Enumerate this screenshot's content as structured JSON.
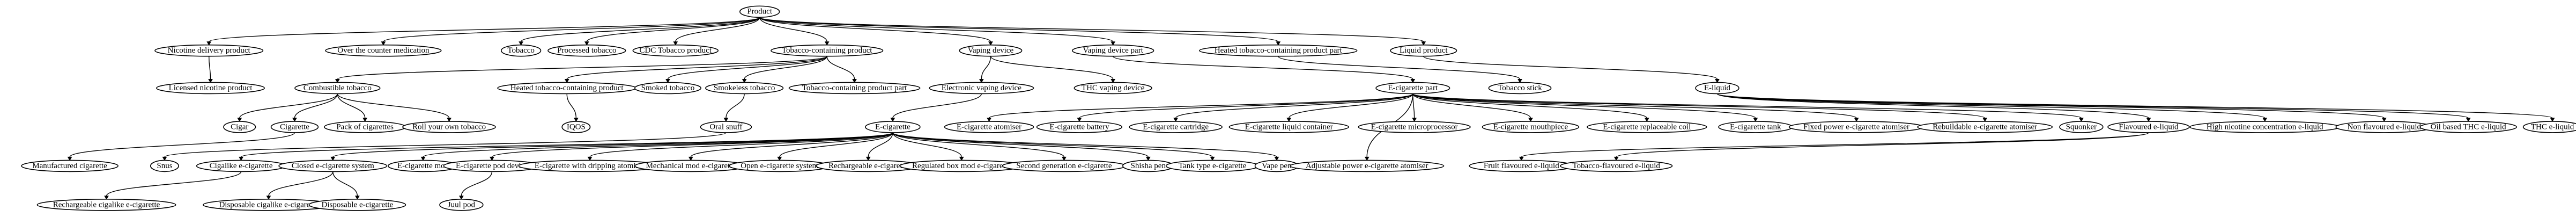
{
  "nodes": {
    "product": "Product",
    "nicotine_delivery_product": "Nicotine delivery product",
    "otc_medication": "Over the counter medication",
    "tobacco": "Tobacco",
    "processed_tobacco": "Processed tobacco",
    "cdc_tobacco_product": "CDC Tobacco product",
    "tobacco_containing_product": "Tobacco-containing product",
    "vaping_device": "Vaping device",
    "vaping_device_part": "Vaping device part",
    "heated_tobacco_containing_product_part": "Heated tobacco-containing product part",
    "liquid_product": "Liquid product",
    "licensed_nicotine_product": "Licensed nicotine product",
    "combustible_tobacco": "Combustible tobacco",
    "heated_tobacco_containing_product": "Heated tobacco-containing product",
    "smoked_tobacco": "Smoked tobacco",
    "smokeless_tobacco": "Smokeless tobacco",
    "tobacco_containing_product_part": "Tobacco-containing product part",
    "electronic_vaping_device": "Electronic vaping device",
    "thc_vaping_device": "THC vaping device",
    "e_cigarette_part": "E-cigarette part",
    "tobacco_stick": "Tobacco stick",
    "e_liquid": "E-liquid",
    "cigar": "Cigar",
    "cigarette": "Cigarette",
    "pack_of_cigarettes": "Pack of cigarettes",
    "roll_your_own_tobacco": "Roll your own tobacco",
    "iqos": "IQOS",
    "oral_snuff": "Oral snuff",
    "e_cigarette": "E-cigarette",
    "e_cigarette_atomiser": "E-cigarette atomiser",
    "e_cigarette_battery": "E-cigarette battery",
    "e_cigarette_cartridge": "E-cigarette cartridge",
    "e_cigarette_liquid_container": "E-cigarette liquid container",
    "e_cigarette_microprocessor": "E-cigarette microprocessor",
    "e_cigarette_mouthpiece": "E-cigarette mouthpiece",
    "e_cigarette_replaceable_coil": "E-cigarette replaceable coil",
    "e_cigarette_tank": "E-cigarette tank",
    "fixed_power_atomiser": "Fixed power e-cigarette atomiser",
    "rebuildable_atomiser": "Rebuildable e-cigarette atomiser",
    "squonker": "Squonker",
    "flavoured_e_liquid": "Flavoured e-liquid",
    "high_nicotine_e_liquid": "High nicotine concentration e-liquid",
    "non_flavoured_e_liquid": "Non flavoured e-liquid",
    "oil_based_thc_e_liquid": "Oil based THC e-liquid",
    "thc_e_liquid": "THC e-liquid",
    "manufactured_cigarette": "Manufactured cigarette",
    "snus": "Snus",
    "cigalike_e_cigarette": "Cigalike e-cigarette",
    "closed_e_cigarette_system": "Closed e-cigarette system",
    "e_cigarette_mod": "E-cigarette mod",
    "e_cigarette_pod_device": "E-cigarette pod device",
    "e_cigarette_dripping_atomiser": "E-cigarette with dripping atomiser",
    "mechanical_mod": "Mechanical mod e-cigarette",
    "open_e_cigarette_system": "Open e-cigarette system",
    "rechargeable_e_cigarette": "Rechargeable e-cigarette",
    "regulated_box_mod": "Regulated box mod e-cigarette",
    "second_generation": "Second generation e-cigarette",
    "shisha_pen": "Shisha pen",
    "tank_type": "Tank type e-cigarette",
    "vape_pen": "Vape pen",
    "adjustable_power_atomiser": "Adjustable power e-cigarette atomiser",
    "fruit_flavoured_e_liquid": "Fruit flavoured e-liquid",
    "tobacco_flavoured_e_liquid": "Tobacco-flavoured e-liquid",
    "rechargeable_cigalike": "Rechargeable cigalike e-cigarette",
    "disposable_cigalike": "Disposable cigalike e-cigarette",
    "disposable_e_cigarette": "Disposable e-cigarette",
    "juul_pod": "Juul pod"
  }
}
